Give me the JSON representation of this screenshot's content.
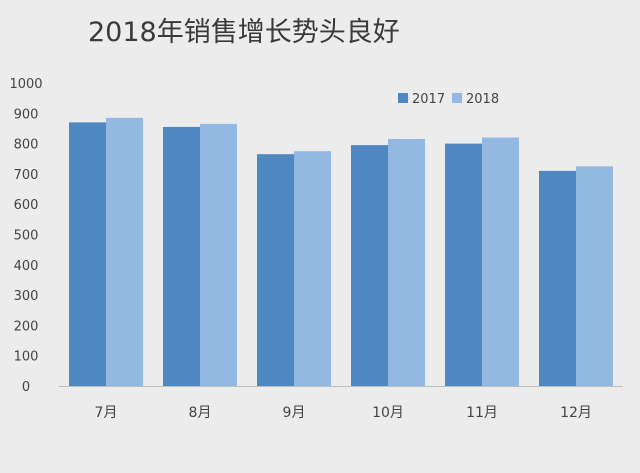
{
  "chart_data": {
    "type": "bar",
    "title": "2018年销售增长势头良好",
    "categories": [
      "7月",
      "8月",
      "9月",
      "10月",
      "11月",
      "12月"
    ],
    "series": [
      {
        "name": "2017",
        "values": [
          870,
          855,
          765,
          795,
          800,
          710
        ]
      },
      {
        "name": "2018",
        "values": [
          885,
          865,
          775,
          815,
          820,
          725
        ]
      }
    ],
    "yticks": [
      "0",
      "100",
      "200",
      "300",
      "400",
      "500",
      "600",
      "700",
      "800",
      "900",
      "1000"
    ],
    "ylim": [
      0,
      1000
    ],
    "xlabel": "",
    "ylabel": "",
    "grid": false,
    "legend": "top-right",
    "colors": [
      "#4f87c0",
      "#93b8e2"
    ]
  }
}
